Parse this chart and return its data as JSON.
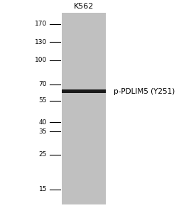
{
  "background_color": "#ffffff",
  "lane_color": "#c0c0c0",
  "band_color": "#1a1a1a",
  "lane_label": "K562",
  "band_label": "p-PDLIM5 (Y251)",
  "mw_markers": [
    170,
    130,
    100,
    70,
    55,
    40,
    35,
    25,
    15
  ],
  "band_mw": 63,
  "label_fontsize": 7.5,
  "marker_fontsize": 6.5,
  "lane_label_fontsize": 8,
  "ymin": 12,
  "ymax": 200,
  "fig_width": 2.76,
  "fig_height": 3.0,
  "dpi": 100
}
